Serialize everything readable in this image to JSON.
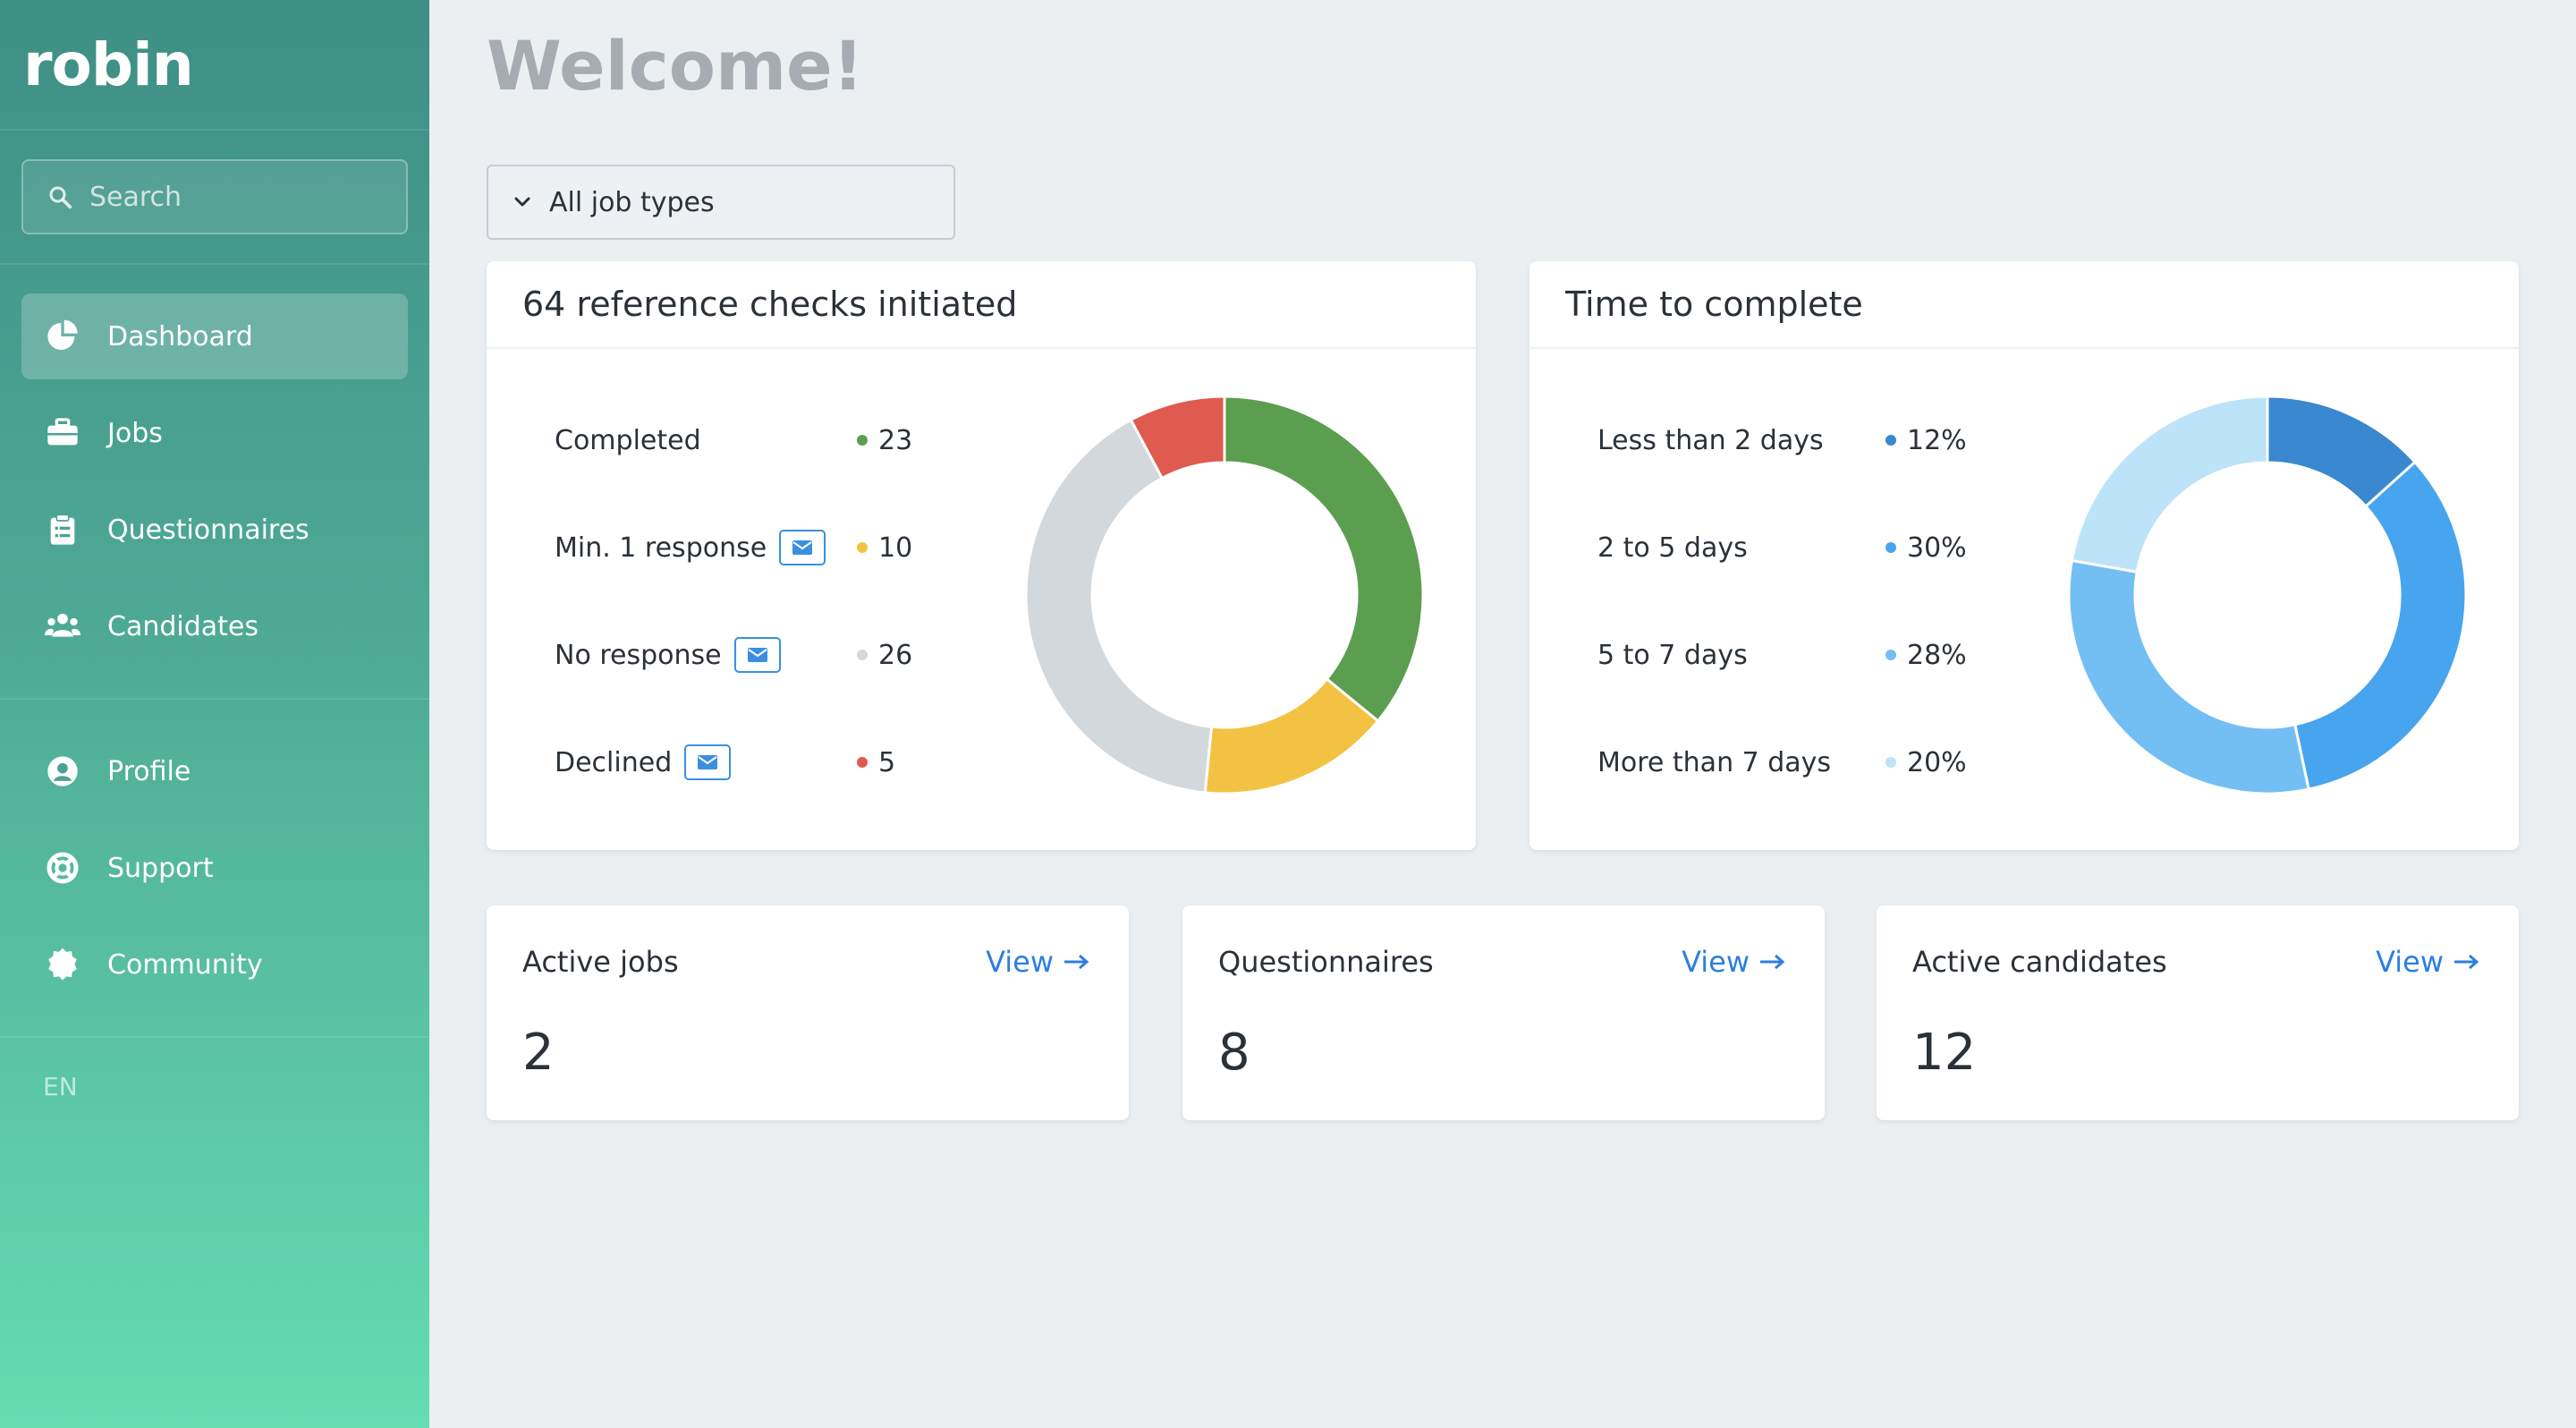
{
  "app": {
    "name": "robin"
  },
  "search": {
    "placeholder": "Search"
  },
  "nav": {
    "dashboard": "Dashboard",
    "jobs": "Jobs",
    "questionnaires": "Questionnaires",
    "candidates": "Candidates",
    "profile": "Profile",
    "support": "Support",
    "community": "Community"
  },
  "language": "EN",
  "page": {
    "title": "Welcome!"
  },
  "filter": {
    "selected": "All job types"
  },
  "reference_checks": {
    "title": "64 reference checks initiated",
    "items": [
      {
        "label": "Completed",
        "value": "23",
        "color": "#5c9e4f"
      },
      {
        "label": "Min. 1 response",
        "value": "10",
        "color": "#f4c242"
      },
      {
        "label": "No response",
        "value": "26",
        "color": "#d3d8dc"
      },
      {
        "label": "Declined",
        "value": "5",
        "color": "#df5b4f"
      }
    ]
  },
  "time_to_complete": {
    "title": "Time to complete",
    "items": [
      {
        "label": "Less than 2 days",
        "value": "12%",
        "color": "#3a88cf"
      },
      {
        "label": "2 to 5 days",
        "value": "30%",
        "color": "#47a4ee"
      },
      {
        "label": "5 to 7 days",
        "value": "28%",
        "color": "#73bff3"
      },
      {
        "label": "More than 7 days",
        "value": "20%",
        "color": "#bde3f8"
      }
    ]
  },
  "stats": {
    "active_jobs": {
      "label": "Active jobs",
      "value": "2",
      "link": "View"
    },
    "questionnaires": {
      "label": "Questionnaires",
      "value": "8",
      "link": "View"
    },
    "active_candidates": {
      "label": "Active candidates",
      "value": "12",
      "link": "View"
    }
  },
  "chart_data": [
    {
      "type": "pie",
      "title": "64 reference checks initiated",
      "categories": [
        "Completed",
        "Min. 1 response",
        "No response",
        "Declined"
      ],
      "values": [
        23,
        10,
        26,
        5
      ],
      "colors": [
        "#5c9e4f",
        "#f4c242",
        "#d3d8dc",
        "#df5b4f"
      ]
    },
    {
      "type": "pie",
      "title": "Time to complete",
      "categories": [
        "Less than 2 days",
        "2 to 5 days",
        "5 to 7 days",
        "More than 7 days"
      ],
      "values": [
        12,
        30,
        28,
        20
      ],
      "colors": [
        "#3a88cf",
        "#47a4ee",
        "#73bff3",
        "#bde3f8"
      ]
    }
  ]
}
